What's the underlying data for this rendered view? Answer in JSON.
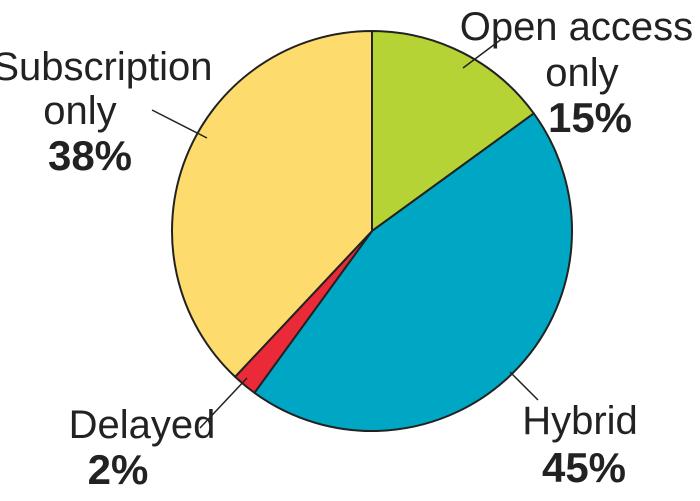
{
  "chart_data": {
    "type": "pie",
    "slices": [
      {
        "label_lines": [
          "Open access",
          "only"
        ],
        "value": 15,
        "pct_label": "15%",
        "color": "#b5d334"
      },
      {
        "label_lines": [
          "Hybrid"
        ],
        "value": 45,
        "pct_label": "45%",
        "color": "#00a7c4"
      },
      {
        "label_lines": [
          "Delayed"
        ],
        "value": 2,
        "pct_label": "2%",
        "color": "#ea2a38"
      },
      {
        "label_lines": [
          "Subscription",
          "only"
        ],
        "value": 38,
        "pct_label": "38%",
        "color": "#fddc6d"
      }
    ],
    "start_angle": "12 o'clock",
    "direction": "clockwise",
    "legend": "none"
  }
}
